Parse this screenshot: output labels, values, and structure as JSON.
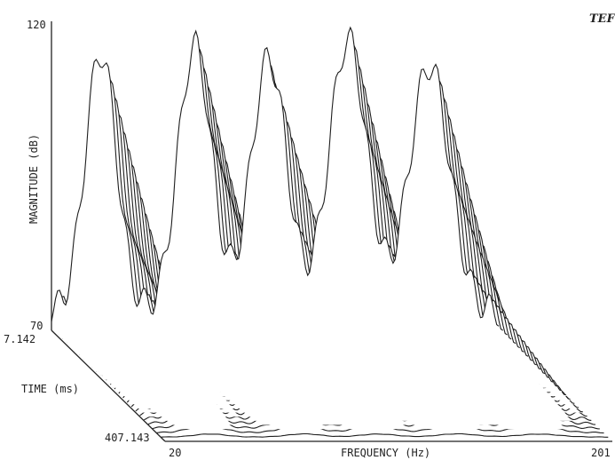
{
  "chart_data": {
    "type": "line",
    "subtype": "waterfall-3d",
    "logo": "TEF",
    "ylabel": "MAGNITUDE (dB)",
    "zlabel": "TIME (ms)",
    "xlabel": "FREQUENCY (Hz)",
    "y_ticks": [
      "120",
      "70"
    ],
    "z_ticks": [
      "7.142",
      "407.143"
    ],
    "x_ticks": [
      "20",
      "201"
    ],
    "ylim": [
      70,
      120
    ],
    "xlim": [
      20,
      201
    ],
    "tlim": [
      7.142,
      407.143
    ],
    "slice_count": 28,
    "peak_frequencies_hz": [
      40,
      78,
      108,
      140,
      173
    ],
    "peak_levels_db": [
      115,
      116,
      114,
      117,
      113
    ],
    "dip_frequencies_hz": [
      60,
      93,
      125,
      158
    ],
    "grid": false,
    "legend": "none"
  }
}
